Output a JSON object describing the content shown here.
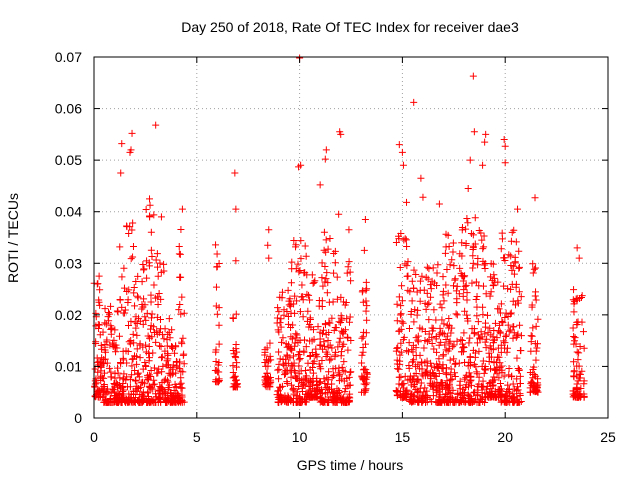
{
  "chart_data": {
    "type": "scatter",
    "title": "Day 250 of 2018, Rate Of TEC Index for receiver dae3",
    "xlabel": "GPS time / hours",
    "ylabel": "ROTI / TECUs",
    "xlim": [
      0,
      25
    ],
    "ylim": [
      0,
      0.07
    ],
    "xticks": [
      0,
      5,
      10,
      15,
      20,
      25
    ],
    "xtick_labels": [
      "0",
      "5",
      "10",
      "15",
      "20",
      "25"
    ],
    "yticks": [
      0,
      0.01,
      0.02,
      0.03,
      0.04,
      0.05,
      0.06,
      0.07
    ],
    "ytick_labels": [
      "0",
      "0.01",
      "0.02",
      "0.03",
      "0.04",
      "0.05",
      "0.06",
      "0.07"
    ],
    "grid": true,
    "marker": "+",
    "color": "#ff0000",
    "series": [
      {
        "name": "ROTI",
        "points": [
          [
            1.35,
            0.0532
          ],
          [
            1.3,
            0.0475
          ],
          [
            1.85,
            0.0552
          ],
          [
            1.8,
            0.052
          ],
          [
            1.75,
            0.0515
          ],
          [
            3.0,
            0.0568
          ],
          [
            2.7,
            0.0425
          ],
          [
            4.3,
            0.0405
          ],
          [
            6.85,
            0.0475
          ],
          [
            6.9,
            0.0405
          ],
          [
            6.9,
            0.0305
          ],
          [
            8.5,
            0.0365
          ],
          [
            8.45,
            0.0335
          ],
          [
            8.5,
            0.031
          ],
          [
            10.0,
            0.0698
          ],
          [
            10.05,
            0.049
          ],
          [
            9.95,
            0.0487
          ],
          [
            11.0,
            0.0452
          ],
          [
            11.3,
            0.052
          ],
          [
            11.25,
            0.0502
          ],
          [
            11.95,
            0.0555
          ],
          [
            12.0,
            0.055
          ],
          [
            11.9,
            0.0395
          ],
          [
            12.4,
            0.0365
          ],
          [
            13.2,
            0.0385
          ],
          [
            13.15,
            0.0325
          ],
          [
            14.85,
            0.053
          ],
          [
            15.0,
            0.0515
          ],
          [
            15.05,
            0.049
          ],
          [
            15.2,
            0.0418
          ],
          [
            15.55,
            0.0612
          ],
          [
            15.9,
            0.0465
          ],
          [
            16.0,
            0.0428
          ],
          [
            16.8,
            0.0415
          ],
          [
            18.45,
            0.0663
          ],
          [
            18.5,
            0.0555
          ],
          [
            18.3,
            0.05
          ],
          [
            18.2,
            0.0445
          ],
          [
            19.05,
            0.055
          ],
          [
            19.0,
            0.0535
          ],
          [
            18.9,
            0.049
          ],
          [
            19.95,
            0.054
          ],
          [
            20.0,
            0.0527
          ],
          [
            20.0,
            0.0495
          ],
          [
            20.6,
            0.0405
          ],
          [
            21.45,
            0.0427
          ],
          [
            23.5,
            0.033
          ],
          [
            23.6,
            0.031
          ]
        ],
        "clusters": [
          {
            "x_start": 0.0,
            "x_end": 0.45,
            "y_min": 0.004,
            "y_max": 0.028
          },
          {
            "x_start": 0.45,
            "x_end": 1.2,
            "y_min": 0.003,
            "y_max": 0.022
          },
          {
            "x_start": 1.2,
            "x_end": 2.0,
            "y_min": 0.003,
            "y_max": 0.038
          },
          {
            "x_start": 2.0,
            "x_end": 2.5,
            "y_min": 0.003,
            "y_max": 0.03
          },
          {
            "x_start": 2.5,
            "x_end": 3.4,
            "y_min": 0.003,
            "y_max": 0.042
          },
          {
            "x_start": 3.4,
            "x_end": 4.1,
            "y_min": 0.003,
            "y_max": 0.02
          },
          {
            "x_start": 4.1,
            "x_end": 4.4,
            "y_min": 0.003,
            "y_max": 0.038
          },
          {
            "x_start": 5.9,
            "x_end": 6.1,
            "y_min": 0.007,
            "y_max": 0.034
          },
          {
            "x_start": 6.75,
            "x_end": 7.0,
            "y_min": 0.006,
            "y_max": 0.022
          },
          {
            "x_start": 8.3,
            "x_end": 8.6,
            "y_min": 0.006,
            "y_max": 0.015
          },
          {
            "x_start": 8.9,
            "x_end": 9.6,
            "y_min": 0.003,
            "y_max": 0.026
          },
          {
            "x_start": 9.6,
            "x_end": 10.4,
            "y_min": 0.003,
            "y_max": 0.035
          },
          {
            "x_start": 10.4,
            "x_end": 11.0,
            "y_min": 0.004,
            "y_max": 0.028
          },
          {
            "x_start": 11.0,
            "x_end": 11.6,
            "y_min": 0.003,
            "y_max": 0.038
          },
          {
            "x_start": 11.6,
            "x_end": 12.5,
            "y_min": 0.003,
            "y_max": 0.033
          },
          {
            "x_start": 13.0,
            "x_end": 13.3,
            "y_min": 0.005,
            "y_max": 0.028
          },
          {
            "x_start": 14.7,
            "x_end": 15.3,
            "y_min": 0.004,
            "y_max": 0.038
          },
          {
            "x_start": 15.3,
            "x_end": 16.0,
            "y_min": 0.003,
            "y_max": 0.029
          },
          {
            "x_start": 16.0,
            "x_end": 17.0,
            "y_min": 0.003,
            "y_max": 0.03
          },
          {
            "x_start": 17.0,
            "x_end": 18.0,
            "y_min": 0.003,
            "y_max": 0.037
          },
          {
            "x_start": 18.0,
            "x_end": 19.0,
            "y_min": 0.003,
            "y_max": 0.039
          },
          {
            "x_start": 19.0,
            "x_end": 19.8,
            "y_min": 0.004,
            "y_max": 0.03
          },
          {
            "x_start": 19.8,
            "x_end": 20.8,
            "y_min": 0.003,
            "y_max": 0.037
          },
          {
            "x_start": 21.2,
            "x_end": 21.6,
            "y_min": 0.005,
            "y_max": 0.03
          },
          {
            "x_start": 23.3,
            "x_end": 23.85,
            "y_min": 0.004,
            "y_max": 0.025
          }
        ]
      }
    ]
  }
}
